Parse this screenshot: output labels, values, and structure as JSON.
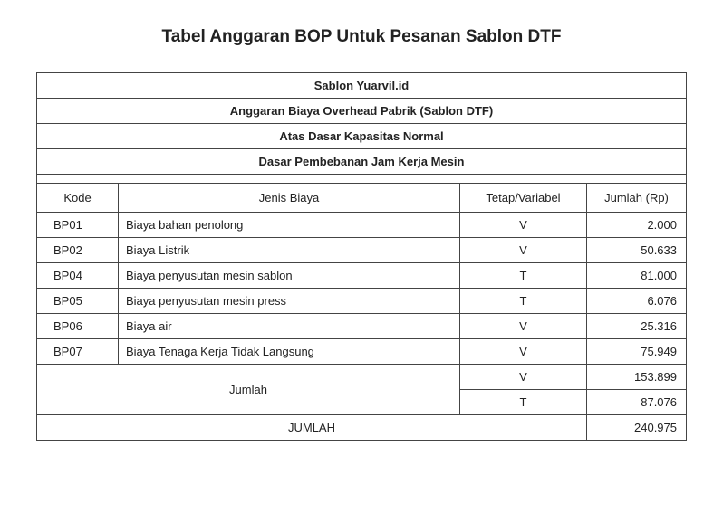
{
  "title": "Tabel Anggaran BOP Untuk Pesanan Sablon DTF",
  "headers": {
    "h1": "Sablon Yuarvil.id",
    "h2": "Anggaran Biaya Overhead Pabrik (Sablon DTF)",
    "h3": "Atas Dasar Kapasitas Normal",
    "h4": "Dasar Pembebanan Jam Kerja Mesin"
  },
  "columns": {
    "kode": "Kode",
    "jenis": "Jenis Biaya",
    "tv": "Tetap/Variabel",
    "jumlah": "Jumlah (Rp)"
  },
  "rows": [
    {
      "kode": "BP01",
      "jenis": "Biaya bahan penolong",
      "tv": "V",
      "jumlah": "2.000"
    },
    {
      "kode": "BP02",
      "jenis": "Biaya Listrik",
      "tv": "V",
      "jumlah": "50.633"
    },
    {
      "kode": "BP04",
      "jenis": "Biaya penyusutan mesin sablon",
      "tv": "T",
      "jumlah": "81.000"
    },
    {
      "kode": "BP05",
      "jenis": "Biaya penyusutan mesin press",
      "tv": "T",
      "jumlah": "6.076"
    },
    {
      "kode": "BP06",
      "jenis": "Biaya air",
      "tv": "V",
      "jumlah": "25.316"
    },
    {
      "kode": "BP07",
      "jenis": "Biaya Tenaga Kerja Tidak Langsung",
      "tv": "V",
      "jumlah": "75.949"
    }
  ],
  "subtotal": {
    "label": "Jumlah",
    "v_label": "V",
    "v_value": "153.899",
    "t_label": "T",
    "t_value": "87.076"
  },
  "grand": {
    "label": "JUMLAH",
    "value": "240.975"
  },
  "styling": {
    "page_bg": "#ffffff",
    "text_color": "#222222",
    "border_color": "#444444",
    "title_fontsize": 19,
    "body_fontsize": 13,
    "col_widths": {
      "kode": 90,
      "tv": 140,
      "jumlah": 110
    }
  }
}
